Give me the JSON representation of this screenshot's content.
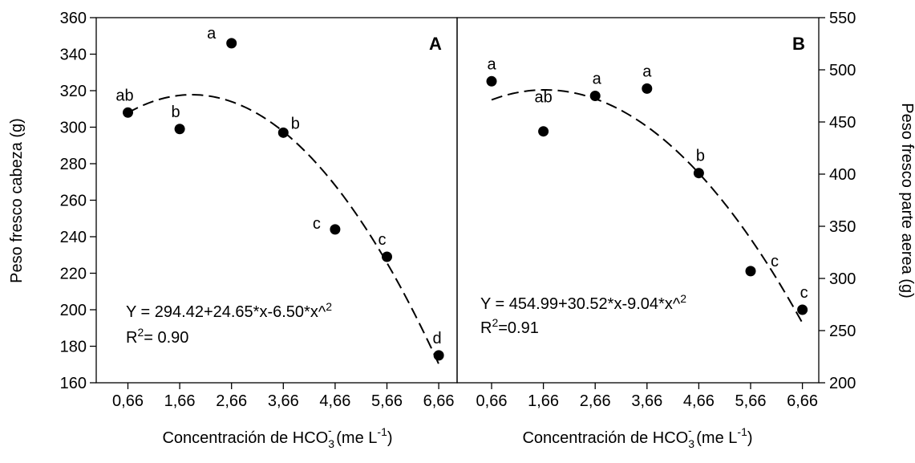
{
  "chart_data": [
    {
      "type": "scatter",
      "panel_label": "A",
      "categories": [
        "0,66",
        "1,66",
        "2,66",
        "3,66",
        "4,66",
        "5,66",
        "6,66"
      ],
      "x": [
        0.66,
        1.66,
        2.66,
        3.66,
        4.66,
        5.66,
        6.66
      ],
      "values": [
        308,
        299,
        346,
        297,
        244,
        229,
        175
      ],
      "point_labels": [
        "ab",
        "b",
        "a",
        "b",
        "c",
        "c",
        "d"
      ],
      "ylim": [
        160,
        360
      ],
      "yticks": [
        160,
        180,
        200,
        220,
        240,
        260,
        280,
        300,
        320,
        340,
        360
      ],
      "ylabel": "Peso fresco cabeza (g)",
      "xlabel": {
        "pre": "Concentración de HCO",
        "sub": "3",
        "sup1": "-",
        "mid": " (me L",
        "sup2": "-1",
        "post": ")"
      },
      "fit": {
        "a": 294.42,
        "b": 24.65,
        "c": -6.5,
        "style": "dashed"
      },
      "equation": {
        "line1_pre": "Y = 294.42+24.65*x-6.50*x^",
        "line1_sup": "2",
        "line2_pre": "R",
        "line2_sup": "2",
        "line2_post": "= 0.90"
      },
      "grid": false
    },
    {
      "type": "scatter",
      "panel_label": "B",
      "categories": [
        "0,66",
        "1,66",
        "2,66",
        "3,66",
        "4,66",
        "5,66",
        "6,66"
      ],
      "x": [
        0.66,
        1.66,
        2.66,
        3.66,
        4.66,
        5.66,
        6.66
      ],
      "values": [
        489,
        441,
        475,
        482,
        401,
        307,
        270
      ],
      "point_labels": [
        "a",
        "ab",
        "a",
        "a",
        "b",
        "c",
        "c"
      ],
      "ylim": [
        200,
        550
      ],
      "yticks": [
        200,
        250,
        300,
        350,
        400,
        450,
        500,
        550
      ],
      "ylabel": "Peso fresco parte aerea (g)",
      "xlabel": {
        "pre": "Concentración  de HCO",
        "sub": "3",
        "sup1": "-",
        "mid": " (me L",
        "sup2": "-1",
        "post": ")"
      },
      "fit": {
        "a": 454.99,
        "b": 30.52,
        "c": -9.04,
        "style": "dashed"
      },
      "equation": {
        "line1_pre": "Y = 454.99+30.52*x-9.04*x^",
        "line1_sup": "2",
        "line2_pre": "R",
        "line2_sup": "2",
        "line2_post": "=0.91"
      },
      "grid": false
    }
  ],
  "colors": {
    "points": "#000000",
    "axes": "#000000",
    "fit": "#000000",
    "background": "#ffffff"
  }
}
